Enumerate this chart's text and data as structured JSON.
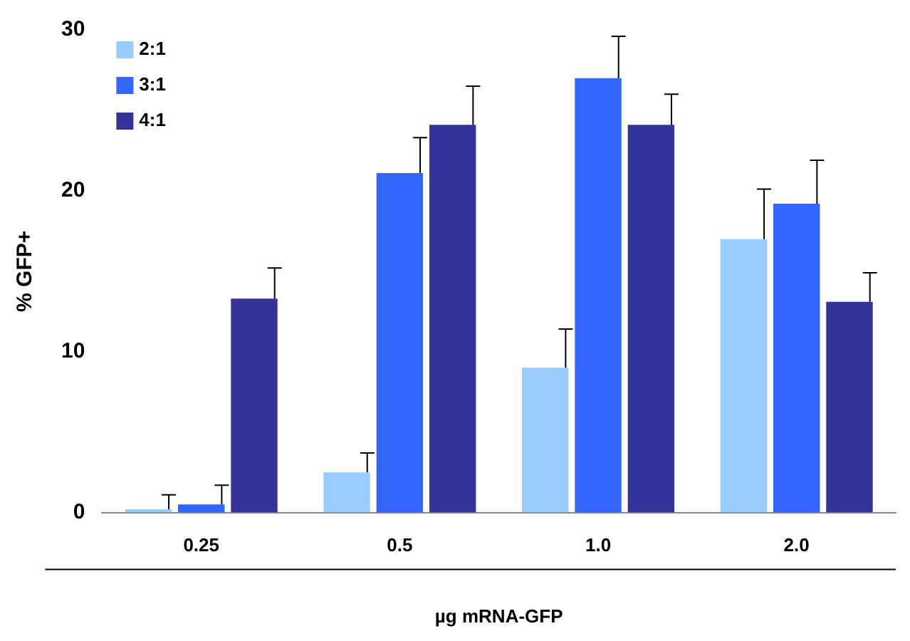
{
  "chart_data": {
    "type": "bar",
    "xlabel": "µg mRNA-GFP",
    "ylabel": "% GFP+",
    "categories": [
      "0.25",
      "0.5",
      "1.0",
      "2.0"
    ],
    "series": [
      {
        "name": "2:1",
        "color": "#99ccff",
        "values": [
          0.2,
          2.5,
          9.0,
          17.0
        ],
        "errors": [
          [
            0.2,
            1.1
          ],
          [
            2.5,
            3.7
          ],
          [
            9.0,
            11.4
          ],
          [
            17.0,
            20.1
          ]
        ]
      },
      {
        "name": "3:1",
        "color": "#3366ff",
        "values": [
          0.5,
          21.1,
          27.0,
          19.2
        ],
        "errors": [
          [
            0.5,
            1.7
          ],
          [
            21.1,
            23.3
          ],
          [
            27.0,
            29.6
          ],
          [
            19.2,
            21.9
          ]
        ]
      },
      {
        "name": "4:1",
        "color": "#333399",
        "values": [
          13.3,
          24.1,
          24.1,
          13.1
        ],
        "errors": [
          [
            13.3,
            15.2
          ],
          [
            24.1,
            26.5
          ],
          [
            24.1,
            26.0
          ],
          [
            13.1,
            14.9
          ]
        ]
      }
    ],
    "ylim": [
      0,
      30
    ],
    "yticks": [
      0,
      10,
      20,
      30
    ],
    "grid": false,
    "legend": "top left"
  }
}
